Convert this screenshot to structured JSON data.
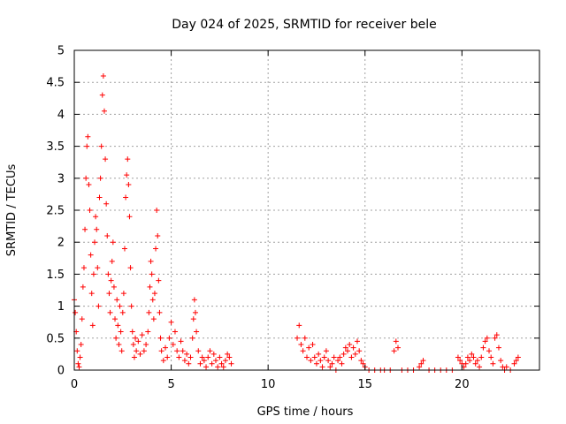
{
  "chart_data": {
    "type": "scatter",
    "title": "Day 024 of 2025, SRMTID for receiver bele",
    "xlabel": "GPS time / hours",
    "ylabel": "SRMTID / TECUs",
    "xlim": [
      0,
      24
    ],
    "ylim": [
      0,
      5
    ],
    "xticks": [
      0,
      5,
      10,
      15,
      20
    ],
    "yticks": [
      0,
      0.5,
      1,
      1.5,
      2,
      2.5,
      3,
      3.5,
      4,
      4.5,
      5
    ],
    "xtick_labels": [
      "0",
      "5",
      "10",
      "15",
      "20"
    ],
    "ytick_labels": [
      "0",
      "0.5",
      "1",
      "1.5",
      "2",
      "2.5",
      "3",
      "3.5",
      "4",
      "4.5",
      "5"
    ],
    "grid": true,
    "marker": "plus",
    "color": "#ff0000",
    "series": [
      {
        "name": "SRMTID",
        "points": [
          [
            0.0,
            1.1
          ],
          [
            0.05,
            0.9
          ],
          [
            0.1,
            0.6
          ],
          [
            0.15,
            0.3
          ],
          [
            0.2,
            0.1
          ],
          [
            0.25,
            0.05
          ],
          [
            0.3,
            0.2
          ],
          [
            0.35,
            0.4
          ],
          [
            0.4,
            0.8
          ],
          [
            0.45,
            1.3
          ],
          [
            0.5,
            1.6
          ],
          [
            0.55,
            2.2
          ],
          [
            0.6,
            3.0
          ],
          [
            0.65,
            3.5
          ],
          [
            0.7,
            3.65
          ],
          [
            0.75,
            2.9
          ],
          [
            0.8,
            2.5
          ],
          [
            0.85,
            1.8
          ],
          [
            0.9,
            1.2
          ],
          [
            0.95,
            0.7
          ],
          [
            1.0,
            1.5
          ],
          [
            1.05,
            2.0
          ],
          [
            1.1,
            2.4
          ],
          [
            1.15,
            2.2
          ],
          [
            1.2,
            1.6
          ],
          [
            1.25,
            1.0
          ],
          [
            1.3,
            2.7
          ],
          [
            1.35,
            3.0
          ],
          [
            1.4,
            3.5
          ],
          [
            1.45,
            4.3
          ],
          [
            1.5,
            4.6
          ],
          [
            1.55,
            4.05
          ],
          [
            1.6,
            3.3
          ],
          [
            1.65,
            2.6
          ],
          [
            1.7,
            2.1
          ],
          [
            1.75,
            1.5
          ],
          [
            1.8,
            1.2
          ],
          [
            1.85,
            0.9
          ],
          [
            1.9,
            1.4
          ],
          [
            1.95,
            1.7
          ],
          [
            2.0,
            2.0
          ],
          [
            2.05,
            1.3
          ],
          [
            2.1,
            0.8
          ],
          [
            2.15,
            0.5
          ],
          [
            2.2,
            1.1
          ],
          [
            2.25,
            0.7
          ],
          [
            2.3,
            0.4
          ],
          [
            2.35,
            1.0
          ],
          [
            2.4,
            0.6
          ],
          [
            2.45,
            0.3
          ],
          [
            2.5,
            0.9
          ],
          [
            2.55,
            1.2
          ],
          [
            2.6,
            1.9
          ],
          [
            2.65,
            2.7
          ],
          [
            2.7,
            3.05
          ],
          [
            2.75,
            3.3
          ],
          [
            2.8,
            2.9
          ],
          [
            2.85,
            2.4
          ],
          [
            2.9,
            1.6
          ],
          [
            2.95,
            1.0
          ],
          [
            3.0,
            0.6
          ],
          [
            3.05,
            0.4
          ],
          [
            3.1,
            0.2
          ],
          [
            3.15,
            0.5
          ],
          [
            3.2,
            0.3
          ],
          [
            3.3,
            0.45
          ],
          [
            3.4,
            0.25
          ],
          [
            3.5,
            0.55
          ],
          [
            3.6,
            0.3
          ],
          [
            3.7,
            0.4
          ],
          [
            3.8,
            0.6
          ],
          [
            3.85,
            0.9
          ],
          [
            3.9,
            1.3
          ],
          [
            3.95,
            1.7
          ],
          [
            4.0,
            1.5
          ],
          [
            4.05,
            1.1
          ],
          [
            4.1,
            0.8
          ],
          [
            4.15,
            1.2
          ],
          [
            4.2,
            1.9
          ],
          [
            4.25,
            2.5
          ],
          [
            4.3,
            2.1
          ],
          [
            4.35,
            1.4
          ],
          [
            4.4,
            0.9
          ],
          [
            4.45,
            0.5
          ],
          [
            4.5,
            0.3
          ],
          [
            4.6,
            0.15
          ],
          [
            4.7,
            0.35
          ],
          [
            4.8,
            0.2
          ],
          [
            4.9,
            0.5
          ],
          [
            5.0,
            0.75
          ],
          [
            5.1,
            0.4
          ],
          [
            5.2,
            0.6
          ],
          [
            5.3,
            0.3
          ],
          [
            5.4,
            0.2
          ],
          [
            5.5,
            0.45
          ],
          [
            5.6,
            0.3
          ],
          [
            5.7,
            0.15
          ],
          [
            5.8,
            0.25
          ],
          [
            5.9,
            0.1
          ],
          [
            6.0,
            0.2
          ],
          [
            6.1,
            0.5
          ],
          [
            6.15,
            0.8
          ],
          [
            6.2,
            1.1
          ],
          [
            6.25,
            0.9
          ],
          [
            6.3,
            0.6
          ],
          [
            6.4,
            0.3
          ],
          [
            6.5,
            0.1
          ],
          [
            6.6,
            0.2
          ],
          [
            6.7,
            0.15
          ],
          [
            6.8,
            0.05
          ],
          [
            6.9,
            0.2
          ],
          [
            7.0,
            0.3
          ],
          [
            7.1,
            0.1
          ],
          [
            7.2,
            0.25
          ],
          [
            7.3,
            0.15
          ],
          [
            7.4,
            0.05
          ],
          [
            7.5,
            0.2
          ],
          [
            7.6,
            0.1
          ],
          [
            7.7,
            0.05
          ],
          [
            7.8,
            0.15
          ],
          [
            7.9,
            0.25
          ],
          [
            8.0,
            0.2
          ],
          [
            8.1,
            0.1
          ],
          [
            11.5,
            0.5
          ],
          [
            11.6,
            0.7
          ],
          [
            11.7,
            0.4
          ],
          [
            11.8,
            0.3
          ],
          [
            11.9,
            0.5
          ],
          [
            12.0,
            0.2
          ],
          [
            12.1,
            0.35
          ],
          [
            12.2,
            0.15
          ],
          [
            12.3,
            0.4
          ],
          [
            12.4,
            0.2
          ],
          [
            12.5,
            0.1
          ],
          [
            12.6,
            0.25
          ],
          [
            12.7,
            0.15
          ],
          [
            12.8,
            0.05
          ],
          [
            12.9,
            0.2
          ],
          [
            13.0,
            0.3
          ],
          [
            13.1,
            0.15
          ],
          [
            13.2,
            0.05
          ],
          [
            13.3,
            0.1
          ],
          [
            13.4,
            0.2
          ],
          [
            13.5,
            0.0
          ],
          [
            13.6,
            0.15
          ],
          [
            13.7,
            0.2
          ],
          [
            13.8,
            0.1
          ],
          [
            13.9,
            0.25
          ],
          [
            14.0,
            0.35
          ],
          [
            14.1,
            0.3
          ],
          [
            14.2,
            0.4
          ],
          [
            14.3,
            0.2
          ],
          [
            14.4,
            0.35
          ],
          [
            14.5,
            0.25
          ],
          [
            14.6,
            0.45
          ],
          [
            14.7,
            0.3
          ],
          [
            14.8,
            0.15
          ],
          [
            14.9,
            0.1
          ],
          [
            15.0,
            0.05
          ],
          [
            15.2,
            0.0
          ],
          [
            15.5,
            0.0
          ],
          [
            15.8,
            0.0
          ],
          [
            16.0,
            0.0
          ],
          [
            16.3,
            0.0
          ],
          [
            16.5,
            0.3
          ],
          [
            16.6,
            0.45
          ],
          [
            16.7,
            0.35
          ],
          [
            16.9,
            0.0
          ],
          [
            17.2,
            0.0
          ],
          [
            17.5,
            0.0
          ],
          [
            17.8,
            0.05
          ],
          [
            17.9,
            0.1
          ],
          [
            18.0,
            0.15
          ],
          [
            18.3,
            0.0
          ],
          [
            18.6,
            0.0
          ],
          [
            18.9,
            0.0
          ],
          [
            19.2,
            0.0
          ],
          [
            19.5,
            0.0
          ],
          [
            19.8,
            0.2
          ],
          [
            19.9,
            0.15
          ],
          [
            20.0,
            0.1
          ],
          [
            20.1,
            0.05
          ],
          [
            20.2,
            0.1
          ],
          [
            20.3,
            0.2
          ],
          [
            20.4,
            0.15
          ],
          [
            20.5,
            0.25
          ],
          [
            20.6,
            0.2
          ],
          [
            20.7,
            0.1
          ],
          [
            20.8,
            0.15
          ],
          [
            20.9,
            0.05
          ],
          [
            21.0,
            0.2
          ],
          [
            21.1,
            0.35
          ],
          [
            21.2,
            0.45
          ],
          [
            21.3,
            0.5
          ],
          [
            21.4,
            0.3
          ],
          [
            21.5,
            0.2
          ],
          [
            21.6,
            0.1
          ],
          [
            21.7,
            0.5
          ],
          [
            21.8,
            0.55
          ],
          [
            21.9,
            0.35
          ],
          [
            22.0,
            0.15
          ],
          [
            22.1,
            0.05
          ],
          [
            22.2,
            0.0
          ],
          [
            22.3,
            0.05
          ],
          [
            22.5,
            0.0
          ],
          [
            22.7,
            0.1
          ],
          [
            22.8,
            0.15
          ],
          [
            22.9,
            0.2
          ]
        ]
      }
    ]
  }
}
